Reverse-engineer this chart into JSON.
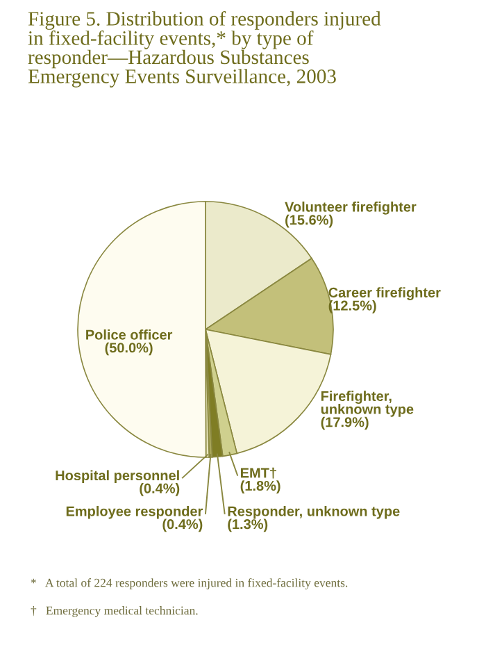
{
  "chart_data": {
    "type": "pie",
    "title": "Figure 5. Distribution of responders injured\nin fixed-facility events,* by type of\nresponder—Hazardous Substances\nEmergency Events Surveillance, 2003",
    "categories": [
      "Volunteer firefighter",
      "Career firefighter",
      "Firefighter,\nunknown type",
      "EMT†",
      "Responder, unknown type",
      "Employee responder",
      "Hospital personnel",
      "Police officer"
    ],
    "values": [
      15.6,
      12.5,
      17.9,
      1.8,
      1.3,
      0.4,
      0.4,
      50.0
    ],
    "value_labels": [
      "(15.6%)",
      "(12.5%)",
      "(17.9%)",
      "(1.8%)",
      "(1.3%)",
      "(0.4%)",
      "(0.4%)",
      "(50.0%)"
    ],
    "colors": [
      "#ebeacb",
      "#c3c07a",
      "#f5f3d8",
      "#cfd08e",
      "#7f7d24",
      "#a9a65a",
      "#e9e7bf",
      "#fefcf0"
    ],
    "annotations": [
      "*   A total of 224 responders were injured in fixed-facility events.",
      "†   Emergency medical technician."
    ]
  }
}
